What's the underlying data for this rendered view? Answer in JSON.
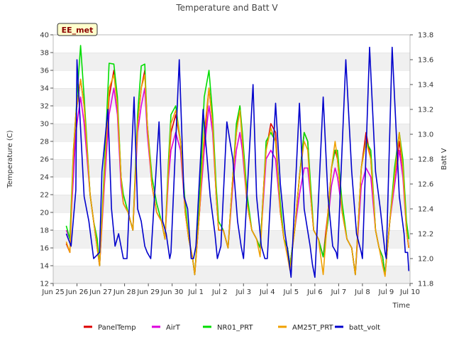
{
  "chart_data": {
    "type": "line",
    "title": "Temperature and Batt V",
    "badge": "EE_met",
    "xlabel": "Time",
    "ylabel": "Temperature (C)",
    "ylabel_right": "Batt V",
    "x_range": [
      0,
      15
    ],
    "ylim": [
      12,
      40
    ],
    "ylim_right": [
      11.8,
      13.8
    ],
    "x_ticks": [
      {
        "x": 0,
        "label": "Jun 25"
      },
      {
        "x": 1,
        "label": "Jun 26"
      },
      {
        "x": 2,
        "label": "Jun 27"
      },
      {
        "x": 3,
        "label": "Jun 28"
      },
      {
        "x": 4,
        "label": "Jun 29"
      },
      {
        "x": 5,
        "label": "Jun 30"
      },
      {
        "x": 6,
        "label": "Jul 1"
      },
      {
        "x": 7,
        "label": "Jul 2"
      },
      {
        "x": 8,
        "label": "Jul 3"
      },
      {
        "x": 9,
        "label": "Jul 4"
      },
      {
        "x": 10,
        "label": "Jul 5"
      },
      {
        "x": 11,
        "label": "Jul 6"
      },
      {
        "x": 12,
        "label": "Jul 7"
      },
      {
        "x": 13,
        "label": "Jul 8"
      },
      {
        "x": 14,
        "label": "Jul 9"
      },
      {
        "x": 15,
        "label": "Jul 10"
      }
    ],
    "y_ticks": [
      12,
      14,
      16,
      18,
      20,
      22,
      24,
      26,
      28,
      30,
      32,
      34,
      36,
      38,
      40
    ],
    "y_ticks_right": [
      11.8,
      12.0,
      12.2,
      12.4,
      12.6,
      12.8,
      13.0,
      13.2,
      13.4,
      13.6,
      13.8
    ],
    "grid": "horizontal bands",
    "legend_position": "bottom",
    "series": [
      {
        "name": "PanelTemp",
        "color": "#dd0000",
        "axis": "left",
        "x": [
          0.55,
          0.7,
          0.85,
          0.95,
          1.15,
          1.3,
          1.55,
          1.7,
          1.85,
          1.95,
          2.15,
          2.35,
          2.55,
          2.7,
          2.85,
          2.95,
          3.15,
          3.35,
          3.55,
          3.7,
          3.85,
          3.95,
          4.15,
          4.35,
          4.55,
          4.7,
          4.85,
          4.95,
          5.15,
          5.35,
          5.55,
          5.7,
          5.85,
          5.95,
          6.15,
          6.35,
          6.55,
          6.7,
          6.85,
          6.95,
          7.15,
          7.35,
          7.55,
          7.7,
          7.85,
          7.95,
          8.15,
          8.35,
          8.55,
          8.7,
          8.85,
          8.95,
          9.15,
          9.35,
          9.55,
          9.7,
          9.85,
          9.95,
          10.15,
          10.35,
          10.55,
          10.7,
          10.85,
          10.95,
          11.15,
          11.35,
          11.55,
          11.7,
          11.85,
          11.95,
          12.15,
          12.35,
          12.55,
          12.7,
          12.85,
          12.95,
          13.15,
          13.35,
          13.55,
          13.7,
          13.85,
          13.95,
          14.15,
          14.35,
          14.55,
          14.7,
          14.85,
          14.95
        ],
        "y": [
          16.5,
          15.5,
          26,
          31,
          35,
          32,
          22,
          19,
          16,
          14,
          24,
          33,
          36,
          32,
          24,
          21,
          20,
          18,
          30,
          34,
          36,
          30,
          23,
          20,
          19,
          17,
          25,
          29,
          31,
          28,
          20,
          17,
          15,
          13,
          20,
          28,
          34,
          30,
          22,
          18,
          18,
          16,
          24,
          29,
          32,
          28,
          21,
          18,
          17,
          16,
          23,
          27,
          30,
          29,
          20,
          17,
          16,
          14,
          18,
          24,
          29,
          28,
          21,
          18,
          17,
          15,
          20,
          25,
          27,
          26,
          20,
          17,
          16,
          13,
          20,
          25,
          29,
          26,
          18,
          16,
          15,
          13,
          19,
          24,
          28,
          25,
          18,
          16
        ]
      },
      {
        "name": "AirT",
        "color": "#dd00dd",
        "axis": "left",
        "x": [
          0.55,
          0.7,
          0.85,
          0.95,
          1.15,
          1.3,
          1.55,
          1.7,
          1.85,
          1.95,
          2.15,
          2.35,
          2.55,
          2.7,
          2.85,
          2.95,
          3.15,
          3.35,
          3.55,
          3.7,
          3.85,
          3.95,
          4.15,
          4.35,
          4.55,
          4.7,
          4.85,
          4.95,
          5.15,
          5.35,
          5.55,
          5.7,
          5.85,
          5.95,
          6.15,
          6.35,
          6.55,
          6.7,
          6.85,
          6.95,
          7.15,
          7.35,
          7.55,
          7.7,
          7.85,
          7.95,
          8.15,
          8.35,
          8.55,
          8.7,
          8.85,
          8.95,
          9.15,
          9.35,
          9.55,
          9.7,
          9.85,
          9.95,
          10.15,
          10.35,
          10.55,
          10.7,
          10.85,
          10.95,
          11.15,
          11.35,
          11.55,
          11.7,
          11.85,
          11.95,
          12.15,
          12.35,
          12.55,
          12.7,
          12.85,
          12.95,
          13.15,
          13.35,
          13.55,
          13.7,
          13.85,
          13.95,
          14.15,
          14.35,
          14.55,
          14.7,
          14.85,
          14.95
        ],
        "y": [
          18,
          17,
          24,
          29,
          33,
          30,
          22,
          19,
          16,
          14,
          23,
          31,
          34,
          31,
          23,
          21,
          20,
          18,
          29,
          32,
          34,
          29,
          23,
          20,
          19,
          17,
          24,
          27,
          29,
          27,
          20,
          17,
          15,
          13,
          20,
          27,
          32,
          29,
          22,
          18,
          18,
          16,
          23,
          27,
          29,
          27,
          21,
          18,
          17,
          16,
          22,
          26,
          27,
          26,
          20,
          17,
          16,
          14,
          18,
          22,
          25,
          25,
          21,
          18,
          17,
          15,
          19,
          23,
          25,
          24,
          20,
          17,
          16,
          13,
          19,
          23,
          25,
          24,
          18,
          16,
          15,
          13,
          19,
          23,
          27,
          24,
          18,
          16
        ]
      },
      {
        "name": "NR01_PRT",
        "color": "#00dd00",
        "axis": "left",
        "x": [
          0.55,
          0.7,
          0.85,
          0.95,
          1.15,
          1.3,
          1.55,
          1.7,
          1.85,
          1.95,
          2.15,
          2.35,
          2.55,
          2.7,
          2.85,
          2.95,
          3.15,
          3.35,
          3.55,
          3.7,
          3.85,
          3.95,
          4.15,
          4.35,
          4.55,
          4.7,
          4.85,
          4.95,
          5.15,
          5.35,
          5.55,
          5.7,
          5.85,
          5.95,
          6.15,
          6.35,
          6.55,
          6.7,
          6.85,
          6.95,
          7.15,
          7.35,
          7.55,
          7.7,
          7.85,
          7.95,
          8.15,
          8.35,
          8.55,
          8.7,
          8.85,
          8.95,
          9.15,
          9.35,
          9.55,
          9.7,
          9.85,
          9.95,
          10.15,
          10.35,
          10.55,
          10.7,
          10.85,
          10.95,
          11.15,
          11.35,
          11.55,
          11.7,
          11.85,
          11.95,
          12.15,
          12.35,
          12.55,
          12.7,
          12.85,
          12.95,
          13.15,
          13.35,
          13.55,
          13.7,
          13.85,
          13.95,
          14.15,
          14.35,
          14.55,
          14.7,
          14.85,
          14.95
        ],
        "y": [
          18.5,
          17,
          27,
          31,
          38.8,
          33,
          22,
          19,
          17,
          14,
          25,
          36.8,
          36.7,
          33,
          24,
          22,
          20,
          18,
          31,
          36.5,
          36.7,
          30,
          24,
          21,
          19,
          17,
          26,
          31,
          32,
          28,
          21,
          17,
          15,
          13,
          21,
          33,
          36,
          31,
          23,
          19,
          18,
          16,
          24,
          30,
          32,
          29,
          22,
          18,
          17,
          16,
          23,
          28,
          29,
          28,
          21,
          17,
          16,
          14,
          18,
          24,
          29,
          28,
          22,
          18,
          17,
          15,
          19,
          25,
          27,
          27,
          21,
          17,
          16,
          13,
          20,
          25,
          28,
          27,
          18,
          16,
          15,
          13,
          19,
          25,
          29,
          26,
          19,
          17
        ]
      },
      {
        "name": "AM25T_PRT",
        "color": "#f0a000",
        "axis": "left",
        "x": [
          0.55,
          0.7,
          0.85,
          0.95,
          1.15,
          1.3,
          1.55,
          1.7,
          1.85,
          1.95,
          2.15,
          2.35,
          2.55,
          2.7,
          2.85,
          2.95,
          3.15,
          3.35,
          3.55,
          3.7,
          3.85,
          3.95,
          4.15,
          4.35,
          4.55,
          4.7,
          4.85,
          4.95,
          5.15,
          5.35,
          5.55,
          5.7,
          5.85,
          5.95,
          6.15,
          6.35,
          6.55,
          6.7,
          6.85,
          6.95,
          7.15,
          7.35,
          7.55,
          7.7,
          7.85,
          7.95,
          8.15,
          8.35,
          8.55,
          8.7,
          8.85,
          8.95,
          9.15,
          9.35,
          9.55,
          9.7,
          9.85,
          9.95,
          10.15,
          10.35,
          10.55,
          10.7,
          10.85,
          10.95,
          11.15,
          11.35,
          11.55,
          11.7,
          11.85,
          11.95,
          12.15,
          12.35,
          12.55,
          12.7,
          12.85,
          12.95,
          13.15,
          13.35,
          13.55,
          13.7,
          13.85,
          13.95,
          14.15,
          14.35,
          14.55,
          14.7,
          14.85,
          14.95
        ],
        "y": [
          16.7,
          15.5,
          27,
          31,
          35,
          32,
          22,
          19,
          16,
          14,
          24,
          34,
          35.5,
          32,
          24,
          21,
          20,
          18,
          30,
          34,
          35.5,
          30,
          23,
          20,
          19,
          17,
          25,
          30,
          31.5,
          28,
          20,
          17,
          15,
          13,
          20,
          29,
          34,
          30,
          22,
          18,
          18,
          16,
          24,
          29,
          31.5,
          28,
          21,
          18,
          17,
          15,
          23,
          27,
          29.5,
          28,
          20,
          17,
          15,
          13.5,
          18,
          24,
          28,
          27,
          21,
          18,
          17,
          13,
          20,
          25,
          28,
          26,
          20,
          17,
          16,
          13,
          20,
          25,
          28,
          26,
          18,
          16,
          14,
          12.8,
          19,
          24,
          29,
          25,
          18,
          16
        ]
      },
      {
        "name": "batt_volt",
        "color": "#0000cc",
        "axis": "right",
        "x": [
          0.55,
          0.75,
          0.95,
          1.0,
          1.3,
          1.5,
          1.7,
          1.95,
          2.05,
          2.3,
          2.45,
          2.6,
          2.75,
          2.95,
          3.1,
          3.4,
          3.55,
          3.7,
          3.85,
          3.95,
          4.1,
          4.45,
          4.6,
          4.75,
          4.9,
          4.95,
          5.3,
          5.5,
          5.65,
          5.8,
          5.9,
          6.0,
          6.3,
          6.6,
          6.8,
          6.9,
          7.05,
          7.3,
          7.55,
          7.75,
          7.9,
          8.0,
          8.4,
          8.55,
          8.75,
          8.9,
          9.0,
          9.35,
          9.55,
          9.75,
          9.9,
          10.0,
          10.35,
          10.55,
          10.8,
          10.9,
          11.0,
          11.35,
          11.55,
          11.75,
          11.9,
          11.95,
          12.3,
          12.55,
          12.75,
          12.95,
          13.0,
          13.3,
          13.55,
          13.75,
          13.95,
          14.0,
          14.25,
          14.55,
          14.75,
          14.8,
          14.9,
          14.95
        ],
        "y": [
          12.2,
          12.1,
          12.55,
          13.6,
          12.5,
          12.3,
          12.0,
          12.05,
          12.7,
          13.2,
          12.4,
          12.1,
          12.2,
          12.0,
          12.0,
          13.3,
          12.4,
          12.3,
          12.1,
          12.05,
          12.0,
          13.1,
          12.3,
          12.2,
          12.0,
          12.05,
          13.6,
          12.5,
          12.4,
          12.0,
          12.0,
          12.1,
          13.2,
          12.5,
          12.2,
          12.0,
          12.1,
          13.1,
          12.8,
          12.3,
          12.1,
          12.0,
          13.4,
          12.5,
          12.1,
          12.0,
          12.0,
          13.25,
          12.6,
          12.2,
          12.0,
          11.85,
          13.25,
          12.4,
          12.1,
          11.95,
          11.85,
          13.3,
          12.5,
          12.1,
          12.05,
          12.0,
          13.6,
          12.7,
          12.2,
          12.05,
          12.0,
          13.7,
          12.7,
          12.4,
          12.05,
          12.0,
          13.7,
          12.5,
          12.2,
          12.05,
          12.05,
          11.9
        ]
      }
    ]
  }
}
